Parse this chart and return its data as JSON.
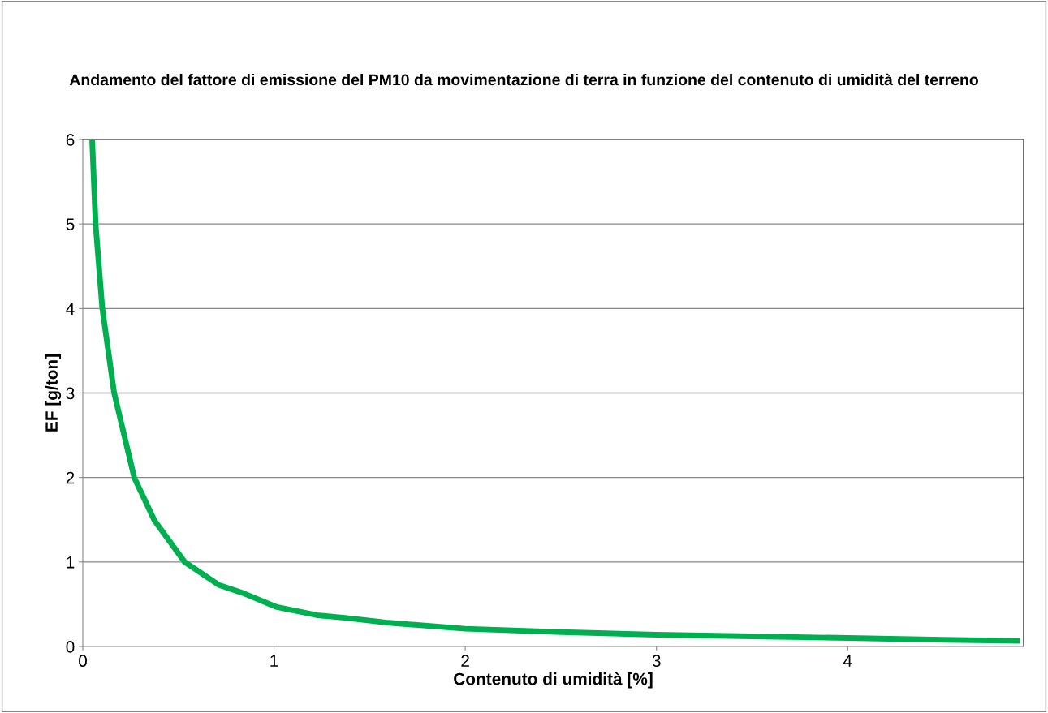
{
  "chart_data": {
    "type": "line",
    "title": "Andamento del fattore di emissione del PM10 da movimentazione di terra in funzione del contenuto di umidità del terreno",
    "xlabel": "Contenuto di umidità [%]",
    "ylabel": "EF [g/ton]",
    "series": [
      {
        "color": "#00b050",
        "x": [
          0.049,
          0.067,
          0.102,
          0.164,
          0.269,
          0.375,
          0.533,
          0.71,
          0.84,
          1.01,
          1.225,
          1.37,
          1.6,
          2.0,
          2.5,
          3.0,
          3.5,
          4.0,
          4.5,
          4.9
        ],
        "values": [
          6,
          5,
          4,
          3,
          2,
          1.49,
          1.0,
          0.73,
          0.63,
          0.47,
          0.37,
          0.34,
          0.28,
          0.21,
          0.17,
          0.14,
          0.12,
          0.1,
          0.08,
          0.066
        ]
      }
    ],
    "xlim": [
      0,
      4.92
    ],
    "xticks": [
      0,
      1,
      2,
      3,
      4
    ],
    "ylim": [
      0,
      6
    ],
    "yticks": [
      0,
      1,
      2,
      3,
      4,
      5,
      6
    ],
    "grid": "y",
    "marker": "none",
    "line_style": "solid",
    "legend": false
  }
}
